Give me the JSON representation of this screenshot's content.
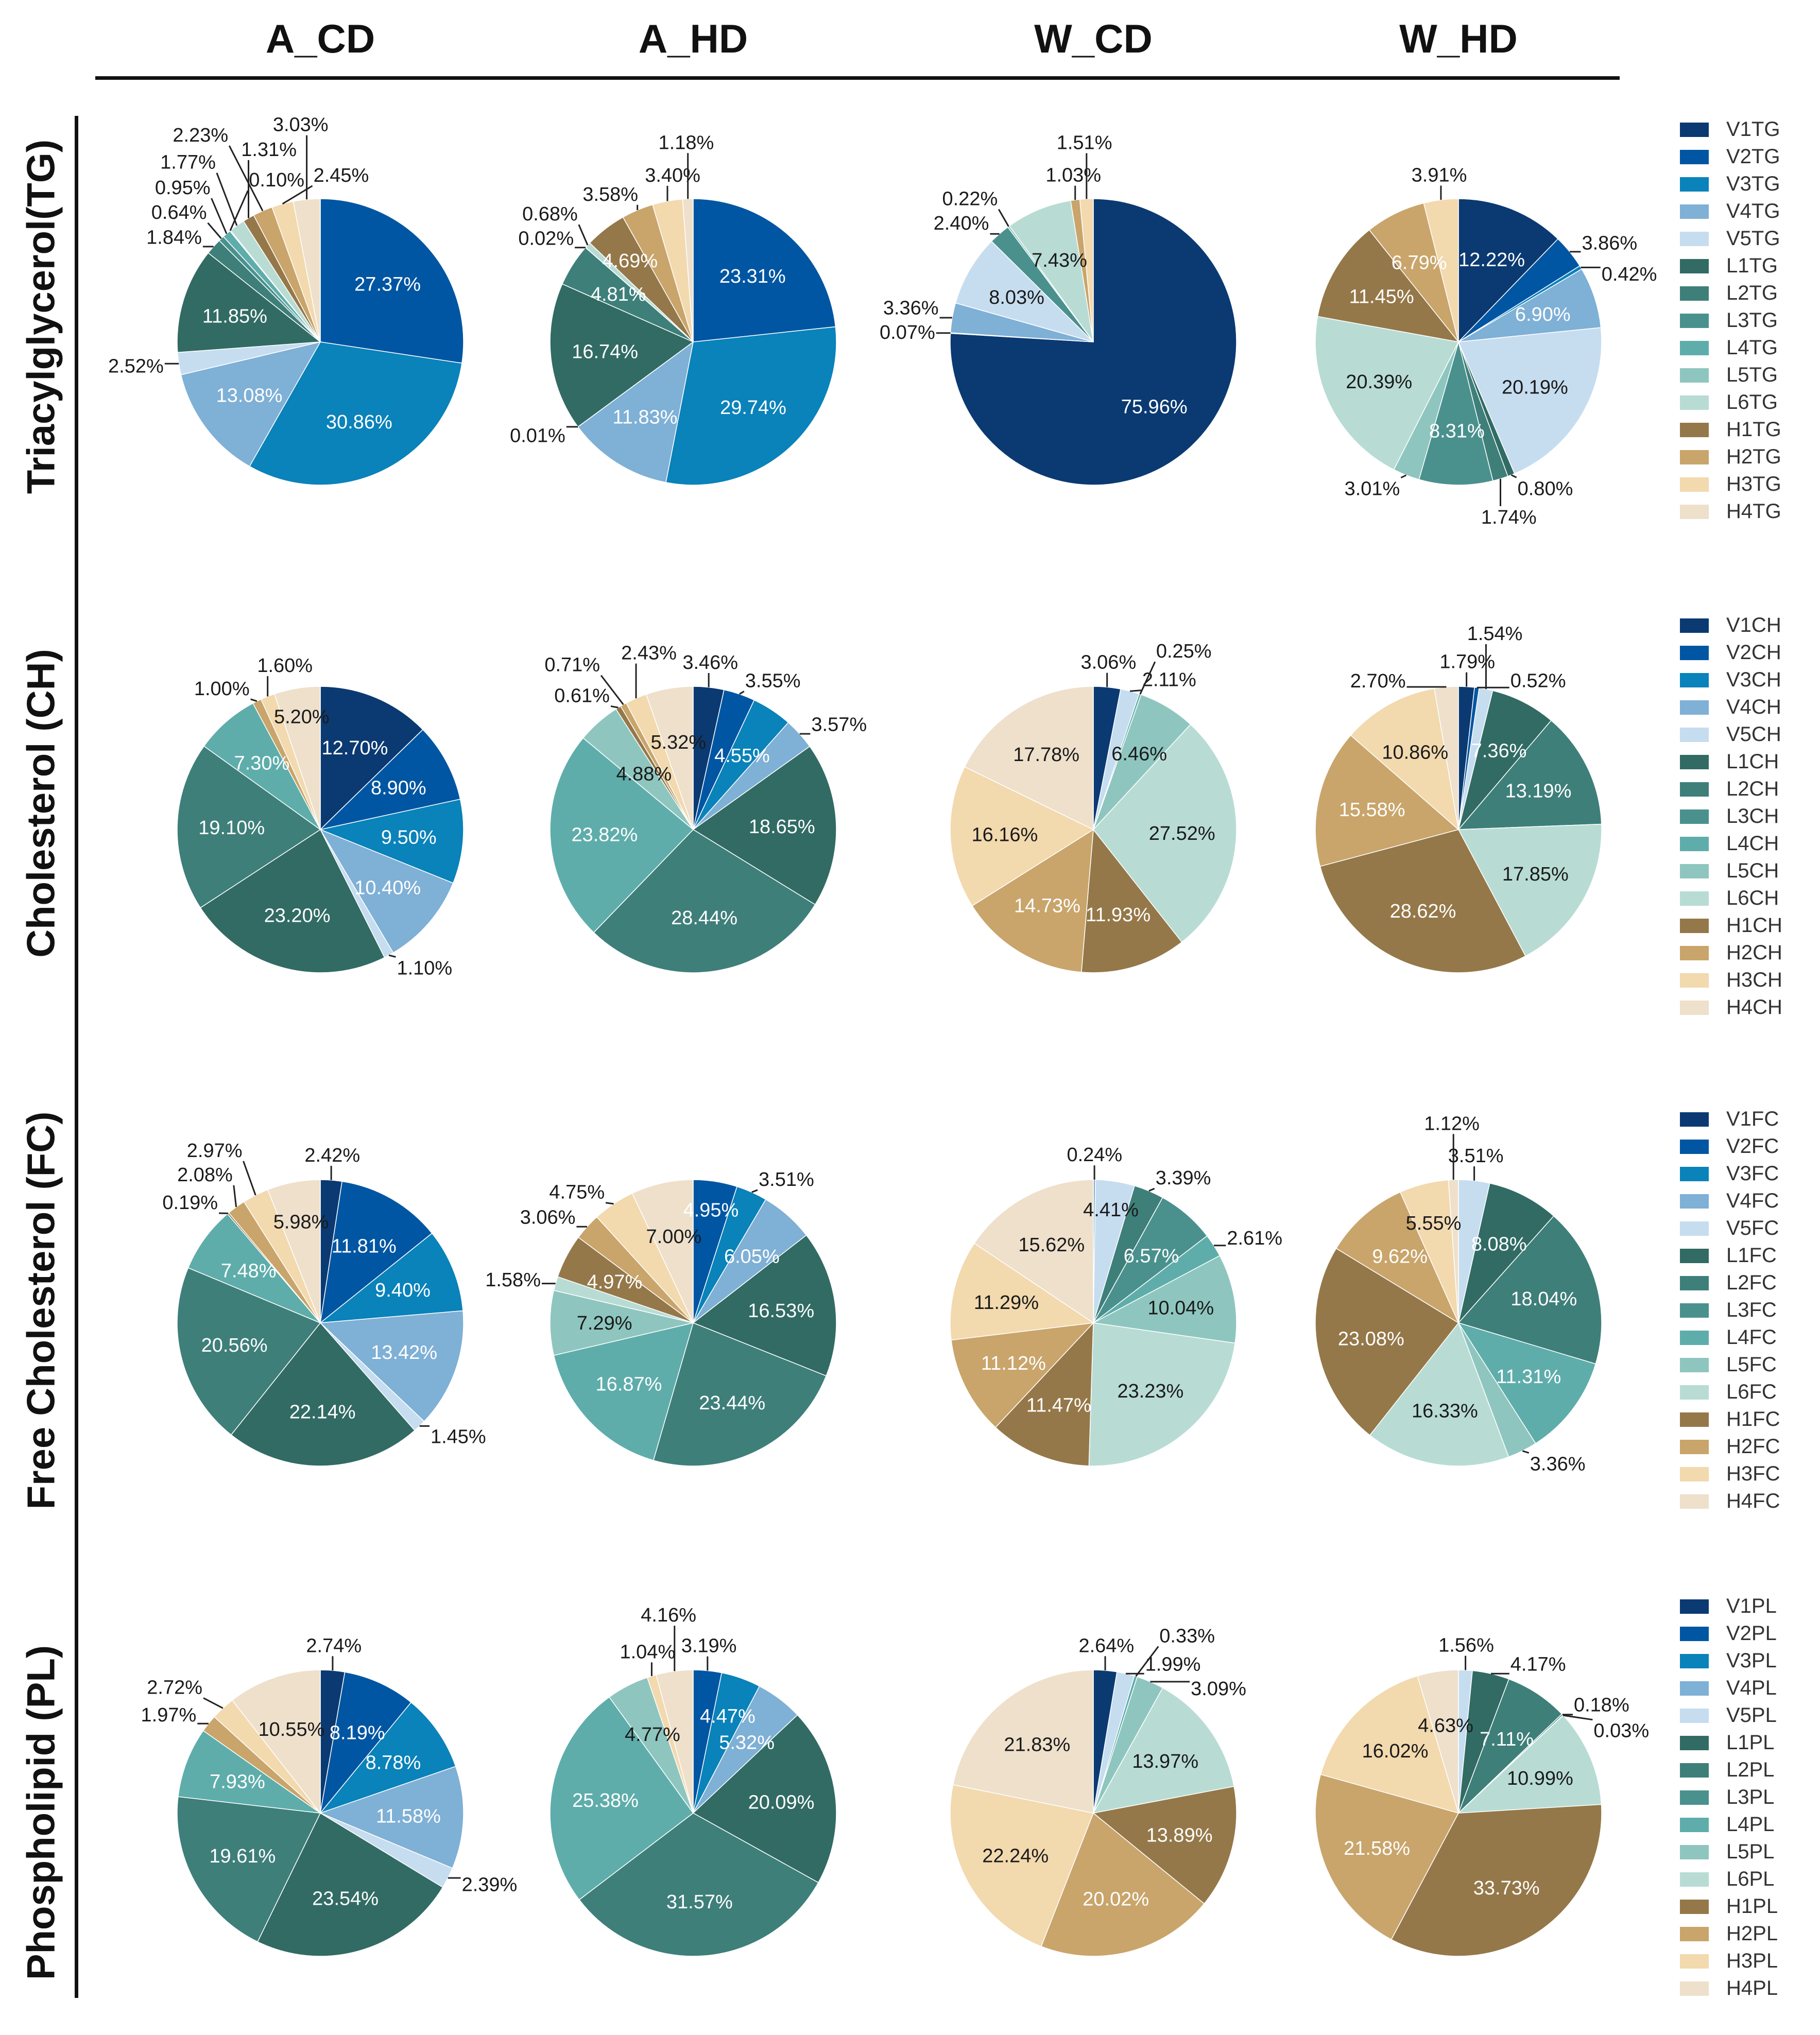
{
  "columns": [
    "A_CD",
    "A_HD",
    "W_CD",
    "W_HD"
  ],
  "rows": [
    {
      "title": "Triacylglycerol(TG)",
      "legend": [
        "V1TG",
        "V2TG",
        "V3TG",
        "V4TG",
        "V5TG",
        "L1TG",
        "L2TG",
        "L3TG",
        "L4TG",
        "L5TG",
        "L6TG",
        "H1TG",
        "H2TG",
        "H3TG",
        "H4TG"
      ]
    },
    {
      "title": "Cholesterol (CH)",
      "legend": [
        "V1CH",
        "V2CH",
        "V3CH",
        "V4CH",
        "V5CH",
        "L1CH",
        "L2CH",
        "L3CH",
        "L4CH",
        "L5CH",
        "L6CH",
        "H1CH",
        "H2CH",
        "H3CH",
        "H4CH"
      ]
    },
    {
      "title": "Free Cholesterol (FC)",
      "legend": [
        "V1FC",
        "V2FC",
        "V3FC",
        "V4FC",
        "V5FC",
        "L1FC",
        "L2FC",
        "L3FC",
        "L4FC",
        "L5FC",
        "L6FC",
        "H1FC",
        "H2FC",
        "H3FC",
        "H4FC"
      ]
    },
    {
      "title": "Phospholipid (PL)",
      "legend": [
        "V1PL",
        "V2PL",
        "V3PL",
        "V4PL",
        "V5PL",
        "L1PL",
        "L2PL",
        "L3PL",
        "L4PL",
        "L5PL",
        "L6PL",
        "H1PL",
        "H2PL",
        "H3PL",
        "H4PL"
      ]
    }
  ],
  "colors": [
    "#0b3a72",
    "#0056a2",
    "#0a82ba",
    "#7fb0d6",
    "#c6ddf0",
    "#316b64",
    "#3e7f7a",
    "#4a918e",
    "#5eadab",
    "#8ec6bf",
    "#b8dcd4",
    "#957849",
    "#c9a56b",
    "#f2d9ae",
    "#eee0cb"
  ],
  "chart_data": {
    "type": "pie",
    "categories": [
      "V1",
      "V2",
      "V3",
      "V4",
      "V5",
      "L1",
      "L2",
      "L3",
      "L4",
      "L5",
      "L6",
      "H1",
      "H2",
      "H3",
      "H4"
    ],
    "start": "12 o'clock, clockwise",
    "unit": "%",
    "groups": [
      "A_CD",
      "A_HD",
      "W_CD",
      "W_HD"
    ],
    "rows": [
      "TG",
      "CH",
      "FC",
      "PL"
    ],
    "values": [
      [
        [
          0,
          27.37,
          30.86,
          13.08,
          2.52,
          11.85,
          1.84,
          0.64,
          0.95,
          0.1,
          1.77,
          1.31,
          2.23,
          2.45,
          3.03
        ],
        [
          0,
          23.31,
          29.74,
          11.83,
          0.01,
          16.74,
          4.81,
          0,
          0.02,
          0,
          0.68,
          4.69,
          3.58,
          3.4,
          1.18
        ],
        [
          75.96,
          0,
          0.07,
          3.36,
          8.03,
          0,
          0,
          2.4,
          0,
          0.22,
          7.43,
          0,
          1.03,
          1.51,
          0
        ],
        [
          12.22,
          3.86,
          0.42,
          6.9,
          20.19,
          0.8,
          1.74,
          8.31,
          0,
          3.01,
          20.39,
          11.45,
          6.79,
          3.91,
          0
        ]
      ],
      [
        [
          12.7,
          8.9,
          9.5,
          10.4,
          1.1,
          23.2,
          19.1,
          0,
          7.3,
          0,
          0,
          0,
          1.0,
          1.6,
          5.2
        ],
        [
          3.46,
          3.55,
          4.55,
          3.57,
          0,
          18.65,
          28.44,
          0,
          23.82,
          4.88,
          0,
          0.61,
          0.71,
          2.43,
          5.32
        ],
        [
          3.06,
          0,
          0,
          0,
          2.11,
          0,
          0,
          0,
          0.25,
          6.46,
          27.52,
          11.93,
          14.73,
          16.16,
          17.78
        ],
        [
          1.79,
          0.52,
          0,
          0,
          1.54,
          7.36,
          13.19,
          0,
          0,
          0,
          17.85,
          28.62,
          15.58,
          10.86,
          2.7
        ]
      ],
      [
        [
          2.42,
          11.81,
          9.4,
          13.42,
          1.45,
          22.14,
          20.56,
          0,
          7.48,
          0,
          0,
          0.19,
          2.08,
          2.97,
          5.98
        ],
        [
          0,
          4.95,
          3.51,
          6.05,
          0,
          16.53,
          23.44,
          0,
          16.87,
          7.29,
          1.58,
          4.97,
          3.06,
          4.75,
          7.0
        ],
        [
          0,
          0,
          0,
          0.24,
          4.41,
          0,
          3.39,
          6.57,
          2.61,
          10.04,
          23.23,
          11.47,
          11.12,
          11.29,
          15.62
        ],
        [
          0,
          0,
          0,
          0,
          3.51,
          8.08,
          18.04,
          0,
          11.31,
          3.36,
          16.33,
          23.08,
          9.62,
          5.55,
          1.12
        ]
      ],
      [
        [
          2.74,
          8.19,
          8.78,
          11.58,
          2.39,
          23.54,
          19.61,
          0,
          7.93,
          0,
          0,
          0,
          1.97,
          2.72,
          10.55
        ],
        [
          0,
          3.19,
          4.47,
          5.32,
          0,
          20.09,
          31.57,
          0,
          25.38,
          4.77,
          0,
          0,
          0,
          1.04,
          4.16
        ],
        [
          2.64,
          0,
          0,
          0,
          1.99,
          0,
          0,
          0,
          0.33,
          3.09,
          13.97,
          13.89,
          20.02,
          22.24,
          21.83
        ],
        [
          0,
          0,
          0,
          0,
          1.56,
          4.17,
          7.11,
          0.18,
          0.03,
          0,
          10.99,
          33.73,
          21.58,
          16.02,
          4.63
        ]
      ]
    ]
  }
}
